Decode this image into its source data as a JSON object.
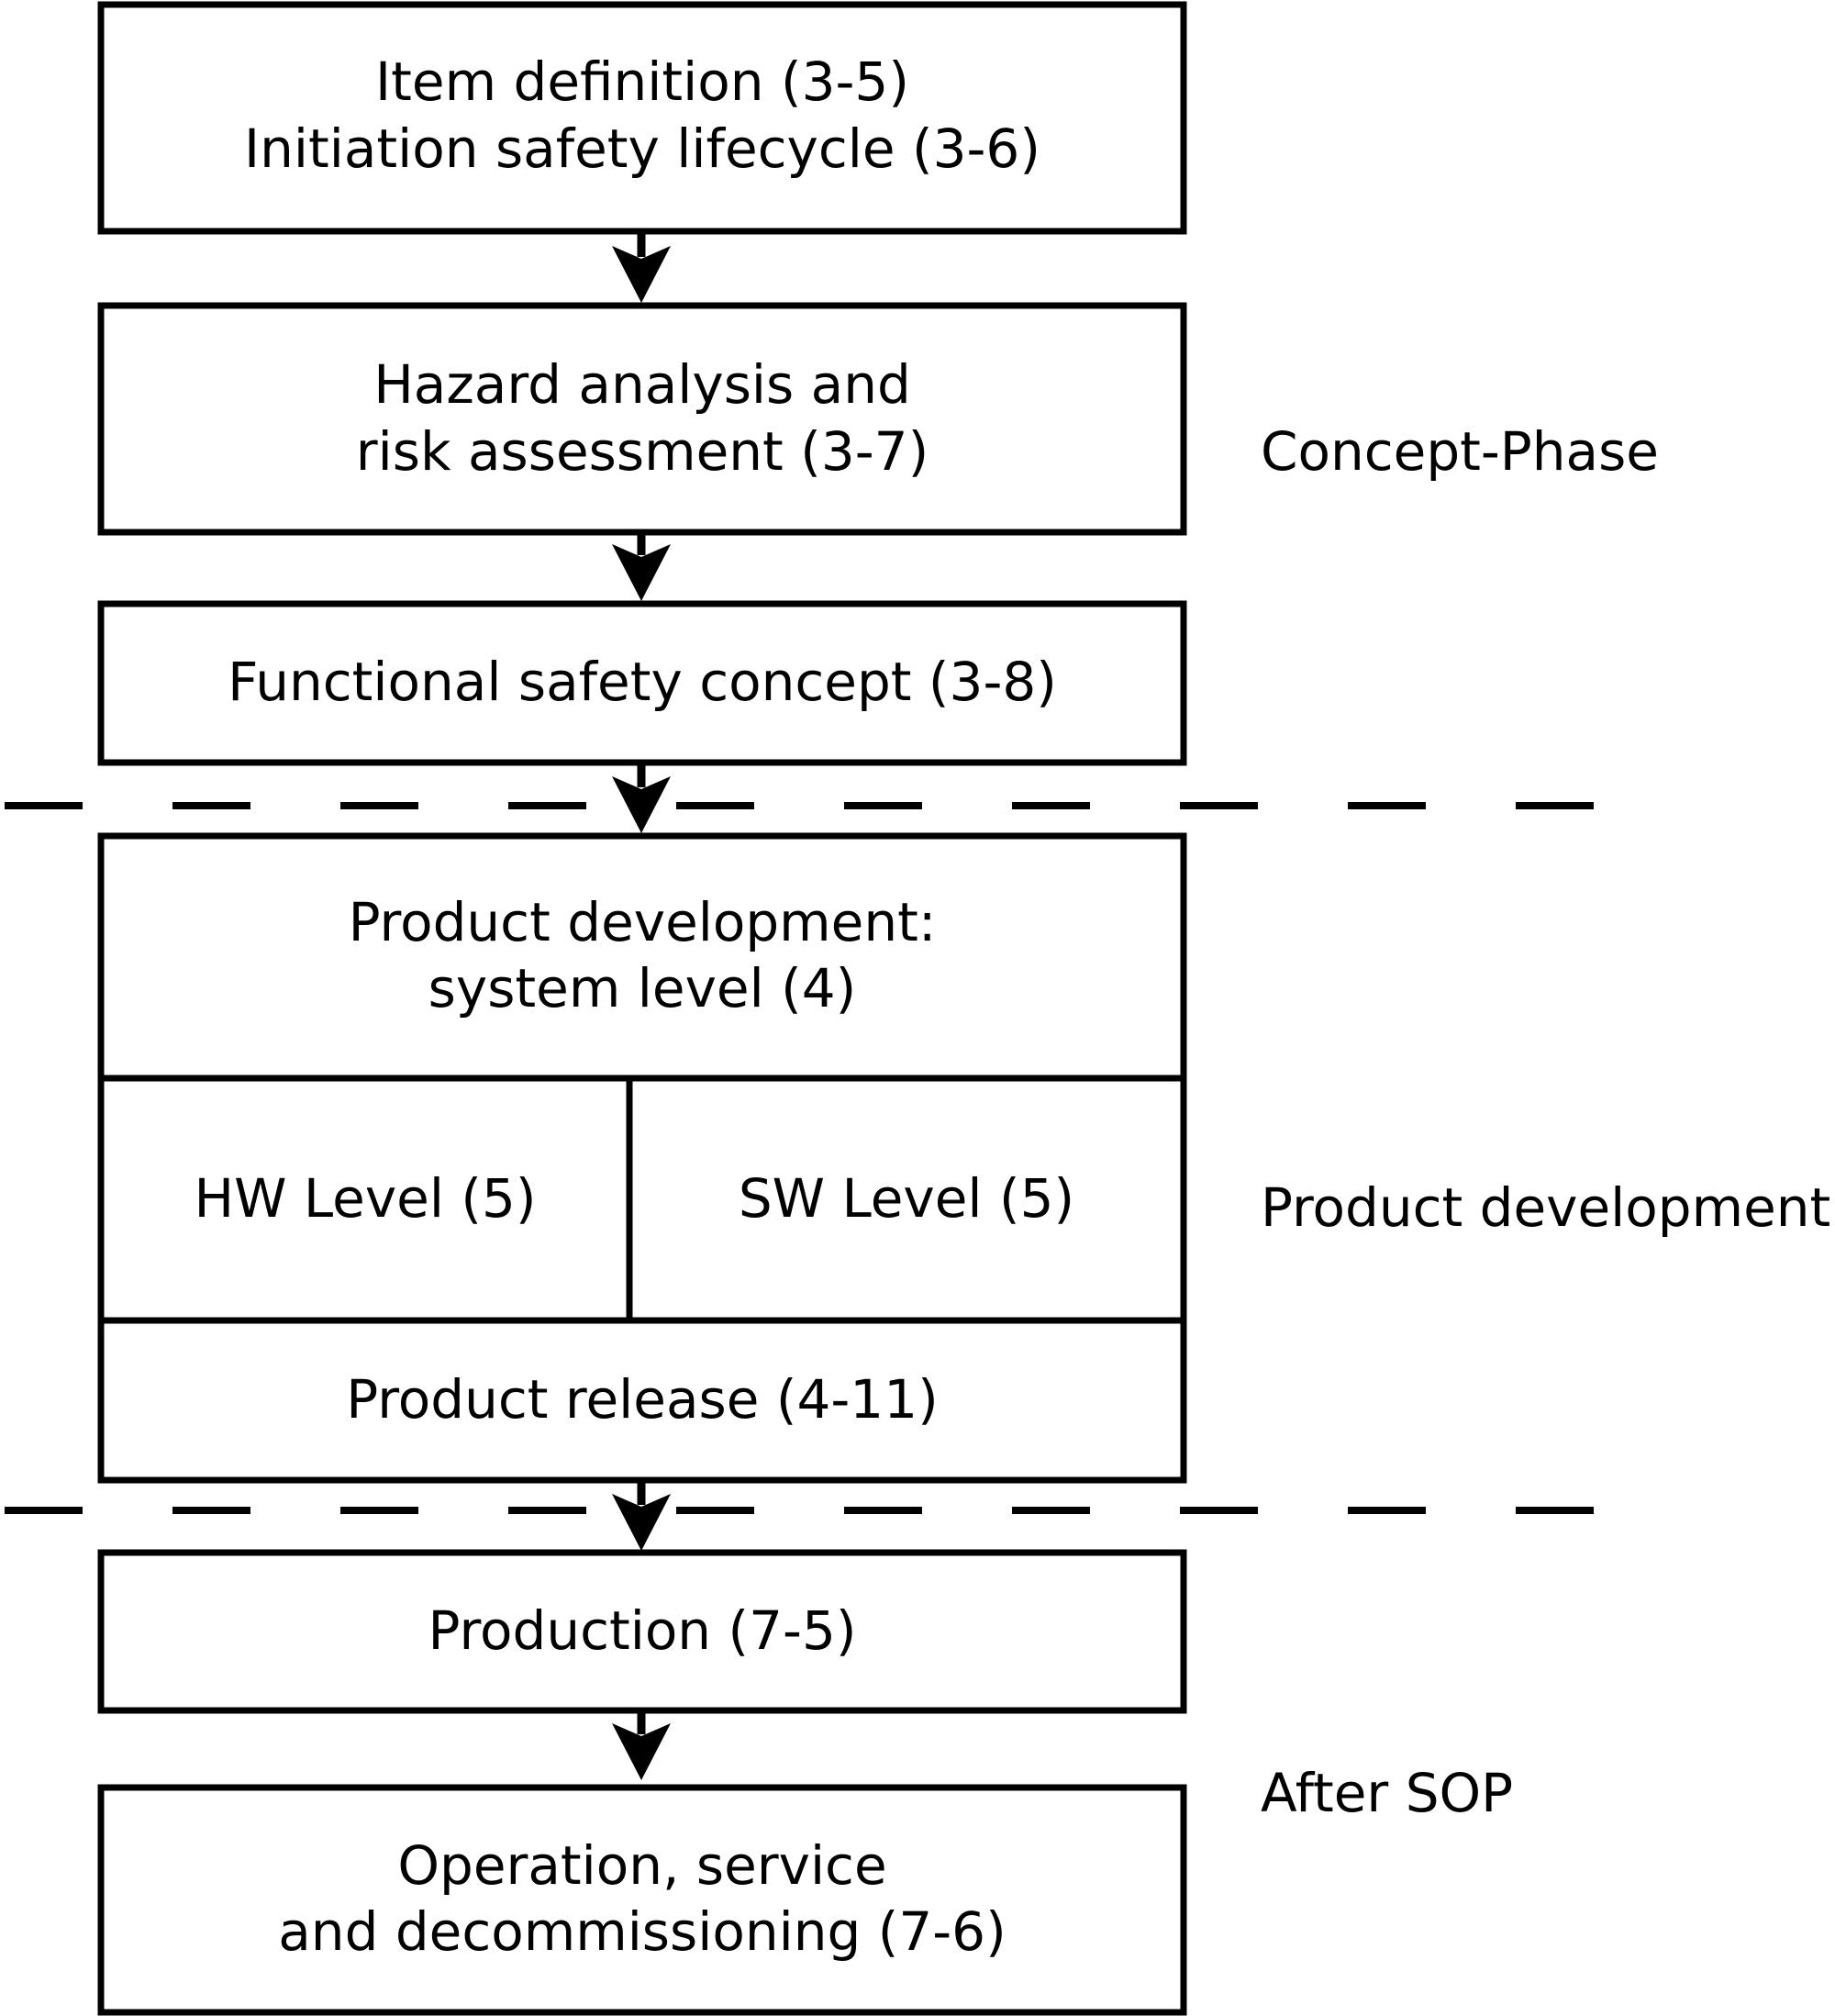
{
  "boxes": {
    "item_definition": {
      "line1": "Item definition (3-5)",
      "line2": "Initiation safety lifecycle (3-6)"
    },
    "hazard_analysis": {
      "line1": "Hazard analysis and",
      "line2": "risk assessment (3-7)"
    },
    "functional_safety_concept": {
      "line1": "Functional safety concept (3-8)"
    },
    "product_development_system": {
      "line1": "Product development:",
      "line2": "system level (4)"
    },
    "hw_level": {
      "line1": "HW Level (5)"
    },
    "sw_level": {
      "line1": "SW Level (5)"
    },
    "product_release": {
      "line1": "Product release (4-11)"
    },
    "production": {
      "line1": "Production (7-5)"
    },
    "operation": {
      "line1": "Operation, service",
      "line2": "and decommissioning (7-6)"
    }
  },
  "phases": {
    "concept": "Concept-Phase",
    "product_development": "Product development",
    "after_sop": "After SOP"
  },
  "colors": {
    "line": "#000000",
    "background": "#ffffff"
  }
}
